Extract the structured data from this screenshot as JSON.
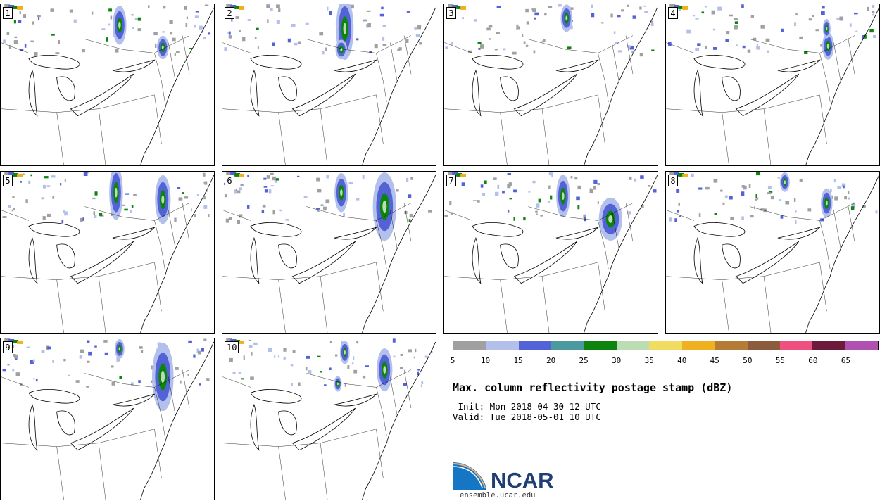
{
  "panels": [
    {
      "label": "1",
      "storms": [
        [
          232,
          62,
          6,
          12
        ],
        [
          170,
          30,
          7,
          20
        ]
      ]
    },
    {
      "label": "2",
      "storms": [
        [
          175,
          35,
          9,
          32
        ],
        [
          170,
          65,
          6,
          10
        ]
      ]
    },
    {
      "label": "3",
      "storms": [
        [
          175,
          20,
          6,
          14
        ]
      ]
    },
    {
      "label": "4",
      "storms": [
        [
          232,
          60,
          6,
          14
        ],
        [
          230,
          35,
          4,
          10
        ]
      ]
    },
    {
      "label": "5",
      "storms": [
        [
          165,
          30,
          7,
          28
        ],
        [
          232,
          40,
          8,
          25
        ]
      ]
    },
    {
      "label": "6",
      "storms": [
        [
          170,
          30,
          7,
          20
        ],
        [
          232,
          50,
          12,
          35
        ]
      ]
    },
    {
      "label": "7",
      "storms": [
        [
          170,
          35,
          7,
          22
        ],
        [
          238,
          68,
          12,
          22
        ]
      ]
    },
    {
      "label": "8",
      "storms": [
        [
          230,
          45,
          6,
          15
        ],
        [
          170,
          15,
          5,
          10
        ]
      ]
    },
    {
      "label": "9",
      "storms": [
        [
          232,
          55,
          11,
          35
        ],
        [
          170,
          15,
          5,
          10
        ]
      ]
    },
    {
      "label": "10",
      "storms": [
        [
          232,
          45,
          8,
          22
        ],
        [
          175,
          20,
          5,
          12
        ],
        [
          165,
          65,
          4,
          8
        ]
      ]
    }
  ],
  "legend": {
    "colors": [
      "#a0a0a0",
      "#b4c0ec",
      "#5462d8",
      "#4a9aa0",
      "#0d840d",
      "#bcdcb4",
      "#f0dc60",
      "#f0b020",
      "#b47c34",
      "#8c5a3c",
      "#f05080",
      "#6e1a3c",
      "#b050b0"
    ],
    "ticks": [
      "5",
      "10",
      "15",
      "20",
      "25",
      "30",
      "35",
      "40",
      "45",
      "50",
      "55",
      "60",
      "65"
    ]
  },
  "title": "Max. column reflectivity postage stamp (dBZ)",
  "init": " Init: Mon 2018-04-30 12 UTC",
  "valid": "Valid: Tue 2018-05-01 10 UTC",
  "logo_text": "NCAR",
  "url": "ensemble.ucar.edu"
}
